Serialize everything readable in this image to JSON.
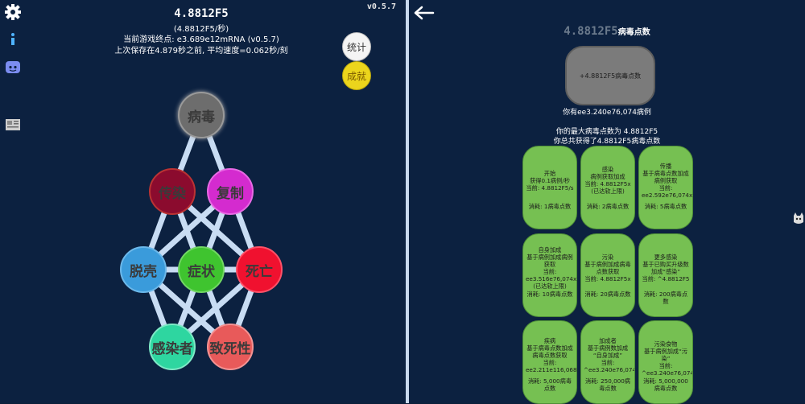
{
  "left": {
    "version": "v0.5.7",
    "points": "4.8812F5",
    "rate": "(4.8812F5/秒)",
    "endgame": "当前游戏终点: e3.689e12mRNA (v0.5.7)",
    "last_save": "上次保存在4.879秒之前, 平均速度=0.062秒/刻",
    "buttons": {
      "stats": "统计",
      "achievements": "成就"
    },
    "icons": [
      "gear-icon",
      "info-icon",
      "discord-icon",
      "news-icon"
    ],
    "nodes": {
      "virus": "病毒",
      "spread": "传染",
      "replicate": "复制",
      "shell": "脱壳",
      "symptom": "症状",
      "death": "死亡",
      "infected": "感染者",
      "lethality": "致死性"
    },
    "colors": {
      "virus": "#6d6d6d",
      "spread": "#8b0b2e",
      "replicate": "#d42bcf",
      "shell": "#3a9bdb",
      "symptom": "#3fc42f",
      "death": "#f0112f",
      "infected": "#2ed6a0",
      "lethality": "#e85a5a"
    }
  },
  "right": {
    "back_icon": "arrow-left-icon",
    "header_amount": "4.8812F5",
    "header_unit": "病毒点数",
    "reset_button": "+4.8812F5病毒点数",
    "cases": "你有ee3.240e76,074病例",
    "max_points": "你的最大病毒点数为 4.8812F5",
    "total_points": "你总共获得了4.8812F5病毒点数",
    "side_icon": "cat-icon",
    "upgrades": [
      {
        "lines": [
          "开始",
          "获得0.1病例/秒",
          "当前: 4.8812F5/s"
        ],
        "cost": "消耗: 1病毒点数"
      },
      {
        "lines": [
          "感染",
          "病例获取加成",
          "当前: 4.8812F5x",
          "(已达软上限)"
        ],
        "cost": "消耗: 2病毒点数"
      },
      {
        "lines": [
          "传播",
          "基于病毒点数加成",
          "病例获取",
          "当前:",
          "ee2.592e76,074x"
        ],
        "cost": "消耗: 5病毒点数"
      },
      {
        "lines": [
          "自身加成",
          "基于病例加成病例",
          "获取",
          "当前:",
          "ee3.516e76,074x",
          "(已达软上限)"
        ],
        "cost": "消耗: 10病毒点数"
      },
      {
        "lines": [
          "污染",
          "基于病例加成病毒",
          "点数获取",
          "当前: 4.8812F5x"
        ],
        "cost": "消耗: 20病毒点数"
      },
      {
        "lines": [
          "更多感染",
          "基于已购买升级数",
          "加成“感染”",
          "当前: ^4.8812F5"
        ],
        "cost": "消耗: 200病毒点数"
      },
      {
        "lines": [
          "疾病",
          "基于病毒点数加成",
          "病毒点数获取",
          "当前:",
          "ee2.211e116,068x"
        ],
        "cost": "消耗: 5,000病毒点数"
      },
      {
        "lines": [
          "加成者",
          "基于病例数加成",
          "“自身加成”",
          "当前:",
          "^ee3.240e76,074"
        ],
        "cost": "消耗: 250,000病毒点数"
      },
      {
        "lines": [
          "污染食物",
          "基于病例加成“污染”",
          "当前:",
          "^ee3.240e76,074"
        ],
        "cost": "消耗: 5,000,000病毒点数"
      }
    ]
  }
}
